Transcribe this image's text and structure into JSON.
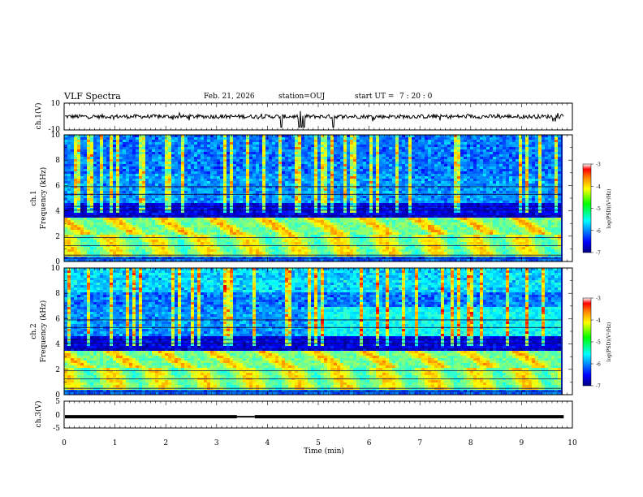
{
  "header": {
    "title": "VLF Spectra",
    "date": "Feb. 21, 2026",
    "station": "station=OUJ",
    "start_label": "start  UT =",
    "start_time": "7 : 20 : 0"
  },
  "chart_data": [
    {
      "type": "line",
      "id": "ch1-waveform",
      "ylabel": "ch.1(V)",
      "ylim": [
        -10,
        10
      ],
      "ytick_labels": [
        "10",
        "-10"
      ],
      "x_range_min": [
        0,
        9.83
      ],
      "baseline_v": 0,
      "spikes_min": [
        4.27,
        4.62,
        4.68,
        4.72,
        5.3
      ]
    },
    {
      "type": "heatmap",
      "id": "ch1-spectrogram",
      "ylabel": "ch.1",
      "ylabel2": "Frequency (kHz)",
      "ylim": [
        0,
        10
      ],
      "ytick_labels": [
        "0",
        "2",
        "4",
        "6",
        "8",
        "10"
      ],
      "colorbar": {
        "label": "log(PSD)(V²/Hz)",
        "range": [
          -7,
          -3
        ],
        "tick_labels": [
          "-7",
          "-6",
          "-5",
          "-4",
          "-3"
        ]
      }
    },
    {
      "type": "heatmap",
      "id": "ch2-spectrogram",
      "ylabel": "ch.2",
      "ylabel2": "Frequency (kHz)",
      "ylim": [
        0,
        10
      ],
      "ytick_labels": [
        "0",
        "2",
        "4",
        "6",
        "8",
        "10"
      ],
      "colorbar": {
        "label": "log(PSD)(V²/Hz)",
        "range": [
          -7,
          -3
        ],
        "tick_labels": [
          "-7",
          "-6",
          "-5",
          "-4",
          "-3"
        ]
      }
    },
    {
      "type": "line",
      "id": "ch3-waveform",
      "ylabel": "ch.3(V)",
      "ylim": [
        -5,
        5
      ],
      "ytick_labels": [
        "5",
        "0",
        "-5"
      ],
      "level_v": -0.8,
      "gap_min": [
        3.4,
        3.75
      ]
    }
  ],
  "x_axis": {
    "label": "Time (min)",
    "range": [
      0,
      10
    ],
    "tick_labels": [
      "0",
      "1",
      "2",
      "3",
      "4",
      "5",
      "6",
      "7",
      "8",
      "9",
      "10"
    ]
  }
}
